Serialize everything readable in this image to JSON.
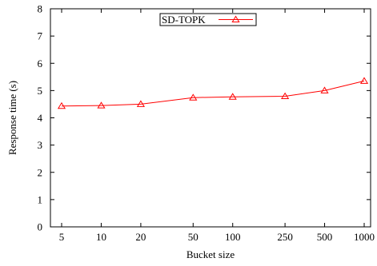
{
  "chart_data": {
    "type": "line",
    "title": "",
    "xlabel": "Bucket size",
    "ylabel": "Response time (s)",
    "categories": [
      "5",
      "10",
      "20",
      "50",
      "100",
      "250",
      "500",
      "1000"
    ],
    "x_scale": "log",
    "ylim": [
      0,
      8
    ],
    "yticks": [
      "0",
      "1",
      "2",
      "3",
      "4",
      "5",
      "6",
      "7",
      "8"
    ],
    "grid": false,
    "legend_position": "top-center",
    "series": [
      {
        "name": "SD-TOPK",
        "color": "#ff0000",
        "marker": "triangle",
        "values": [
          4.43,
          4.45,
          4.5,
          4.74,
          4.77,
          4.79,
          5.0,
          5.35
        ]
      }
    ]
  }
}
